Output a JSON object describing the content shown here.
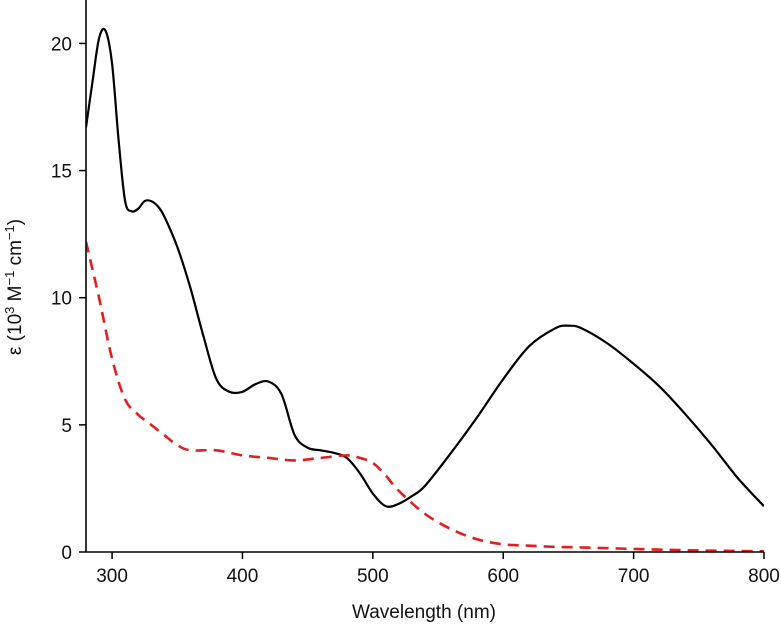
{
  "chart_data": {
    "type": "line",
    "xlabel": "Wavelength (nm)",
    "ylabel": {
      "prefix": "ε (10",
      "exp1": "3",
      "mid1": " M",
      "exp2": "−1",
      "mid2": " cm",
      "exp3": "−1",
      "suffix": ")"
    },
    "xlim": [
      280,
      800
    ],
    "ylim": [
      0,
      21
    ],
    "xticks": [
      300,
      400,
      500,
      600,
      700,
      800
    ],
    "yticks": [
      0,
      5,
      10,
      15,
      20
    ],
    "grid": false,
    "legend": "none",
    "series": [
      {
        "color": "#000000",
        "style": "solid",
        "x": [
          280,
          285,
          290,
          295,
          300,
          305,
          310,
          315,
          320,
          325,
          330,
          335,
          340,
          350,
          360,
          370,
          380,
          390,
          400,
          410,
          420,
          430,
          440,
          450,
          460,
          470,
          480,
          490,
          500,
          510,
          520,
          530,
          540,
          560,
          580,
          600,
          620,
          640,
          650,
          660,
          680,
          700,
          720,
          740,
          760,
          780,
          800
        ],
        "y": [
          16.7,
          18.5,
          20.2,
          20.5,
          19.2,
          16.2,
          13.8,
          13.4,
          13.5,
          13.8,
          13.8,
          13.6,
          13.2,
          12.0,
          10.4,
          8.5,
          6.8,
          6.3,
          6.3,
          6.6,
          6.7,
          6.2,
          4.6,
          4.1,
          4.0,
          3.9,
          3.7,
          3.1,
          2.3,
          1.8,
          1.9,
          2.2,
          2.6,
          3.9,
          5.3,
          6.8,
          8.1,
          8.8,
          8.9,
          8.8,
          8.2,
          7.4,
          6.5,
          5.4,
          4.2,
          2.9,
          1.8
        ]
      },
      {
        "color": "#e02020",
        "style": "dashed",
        "x": [
          280,
          290,
          300,
          310,
          320,
          330,
          340,
          350,
          360,
          380,
          400,
          420,
          440,
          460,
          480,
          490,
          500,
          510,
          520,
          540,
          560,
          580,
          600,
          620,
          640,
          660,
          700,
          750,
          800
        ],
        "y": [
          12.2,
          10.0,
          7.6,
          6.0,
          5.4,
          5.0,
          4.6,
          4.2,
          4.0,
          4.0,
          3.8,
          3.7,
          3.6,
          3.7,
          3.8,
          3.7,
          3.5,
          3.0,
          2.4,
          1.5,
          0.9,
          0.5,
          0.3,
          0.25,
          0.2,
          0.18,
          0.12,
          0.06,
          0.03
        ]
      }
    ]
  }
}
